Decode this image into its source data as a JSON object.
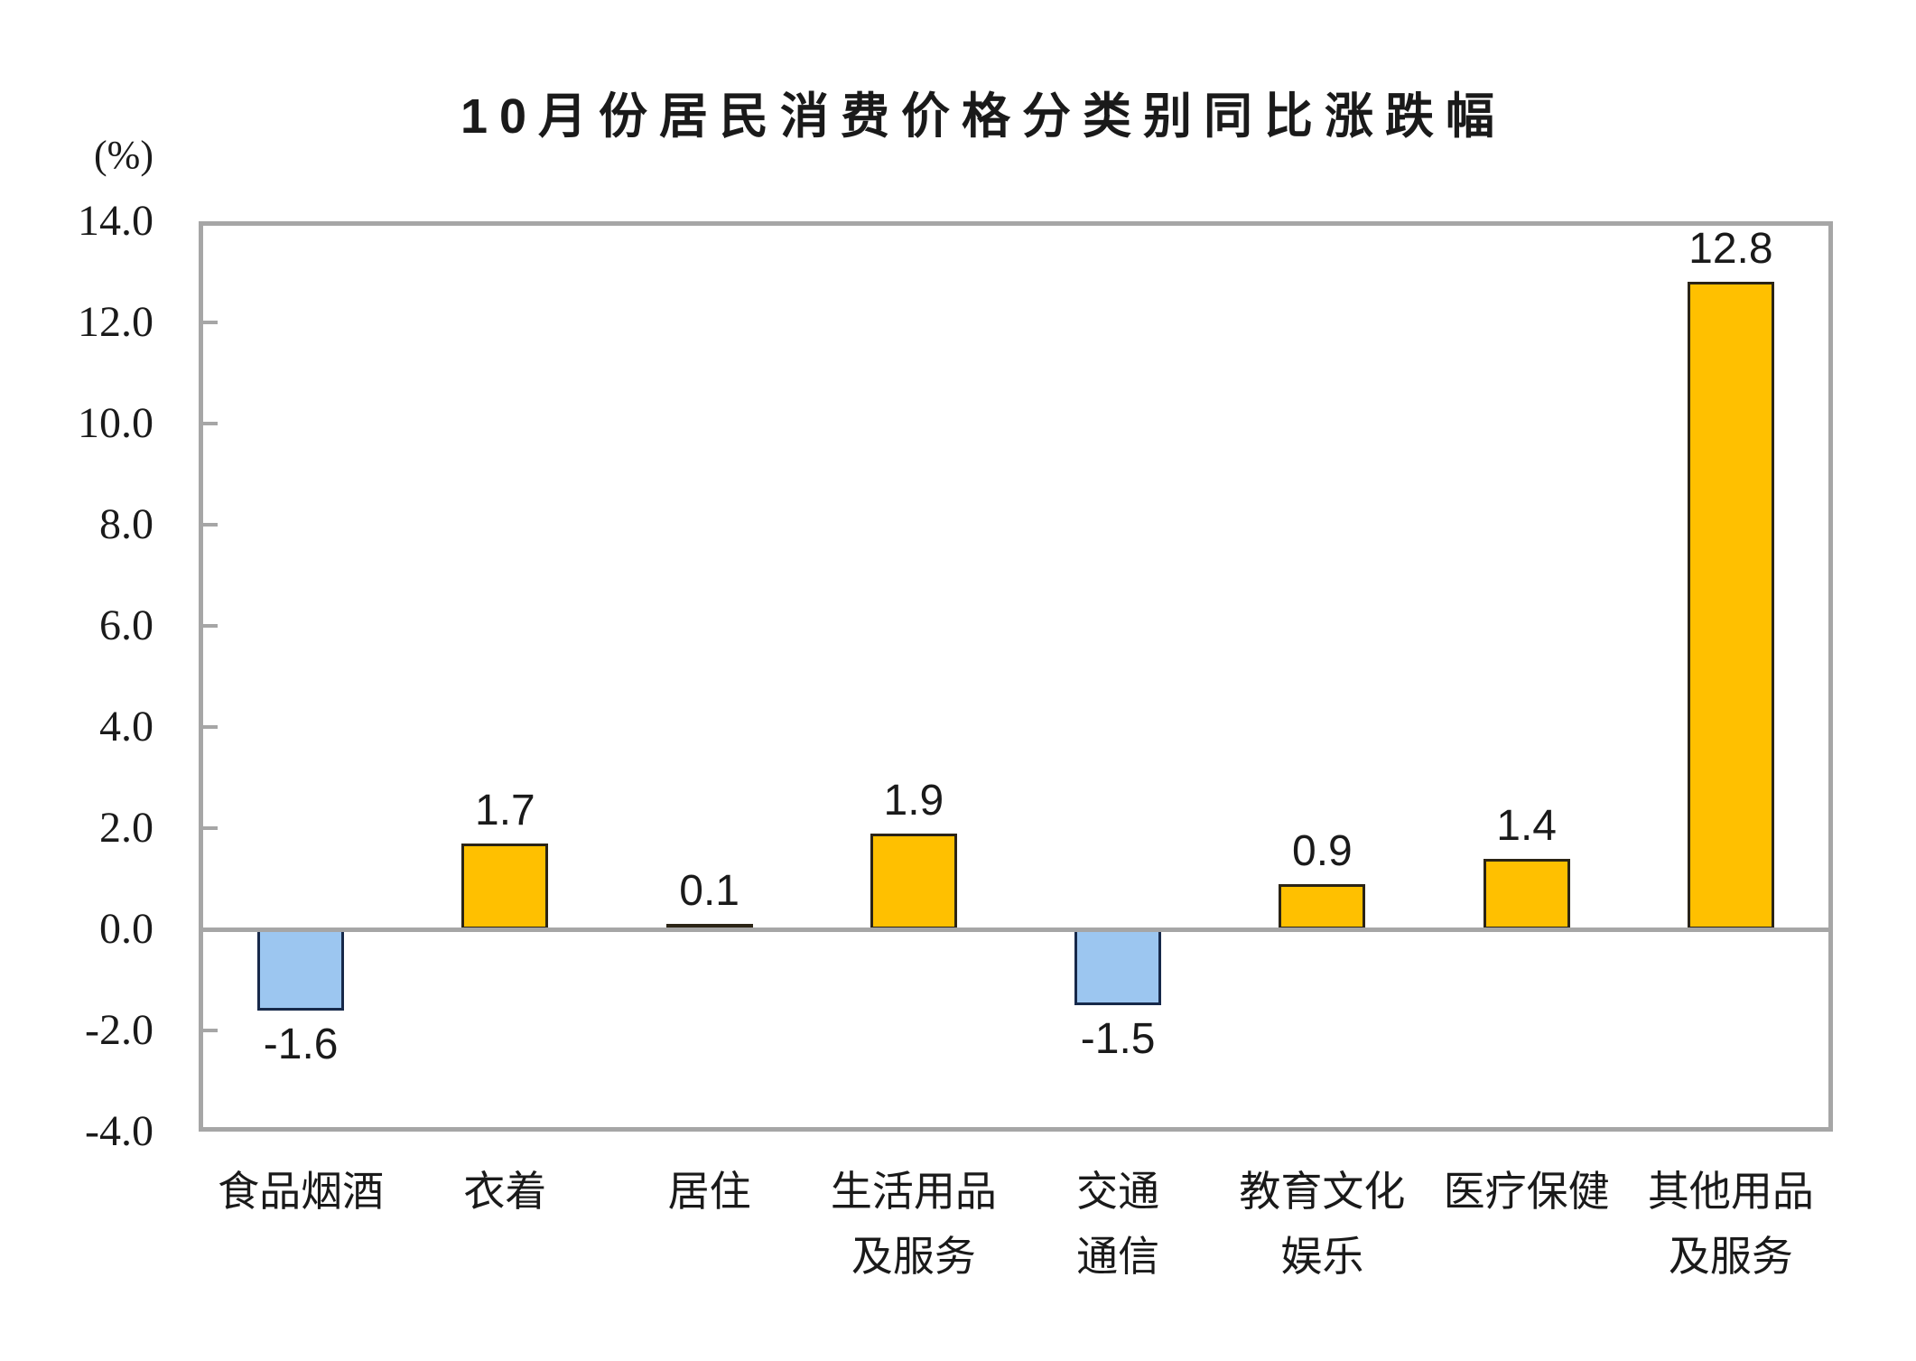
{
  "title": "10月份居民消费价格分类别同比涨跌幅",
  "chart_data": {
    "type": "bar",
    "title": "10月份居民消费价格分类别同比涨跌幅",
    "unit_label": "(%)",
    "xlabel": "",
    "ylabel": "(%)",
    "categories": [
      "食品烟酒",
      "衣着",
      "居住",
      "生活用品及服务",
      "交通通信",
      "教育文化娱乐",
      "医疗保健",
      "其他用品及服务"
    ],
    "category_display_lines": [
      [
        "食品烟酒"
      ],
      [
        "衣着"
      ],
      [
        "居住"
      ],
      [
        "生活用品",
        "及服务"
      ],
      [
        "交通",
        "通信"
      ],
      [
        "教育文化",
        "娱乐"
      ],
      [
        "医疗保健"
      ],
      [
        "其他用品",
        "及服务"
      ]
    ],
    "values": [
      -1.6,
      1.7,
      0.1,
      1.9,
      -1.5,
      0.9,
      1.4,
      12.8
    ],
    "value_labels": [
      "-1.6",
      "1.7",
      "0.1",
      "1.9",
      "-1.5",
      "0.9",
      "1.4",
      "12.8"
    ],
    "ylim": [
      -4.0,
      14.0
    ],
    "ytick_step": 2.0,
    "ytick_labels": [
      "14.0",
      "12.0",
      "10.0",
      "8.0",
      "6.0",
      "4.0",
      "2.0",
      "0.0",
      "-2.0",
      "-4.0"
    ],
    "grid": false,
    "legend_position": "none",
    "colors": {
      "positive_bar_fill": "#FFC000",
      "positive_bar_border": "#2B2416",
      "negative_bar_fill": "#9CC6F0",
      "negative_bar_border": "#17294A",
      "axis_frame": "#A6A6A6",
      "text": "#1A1A1A"
    }
  }
}
